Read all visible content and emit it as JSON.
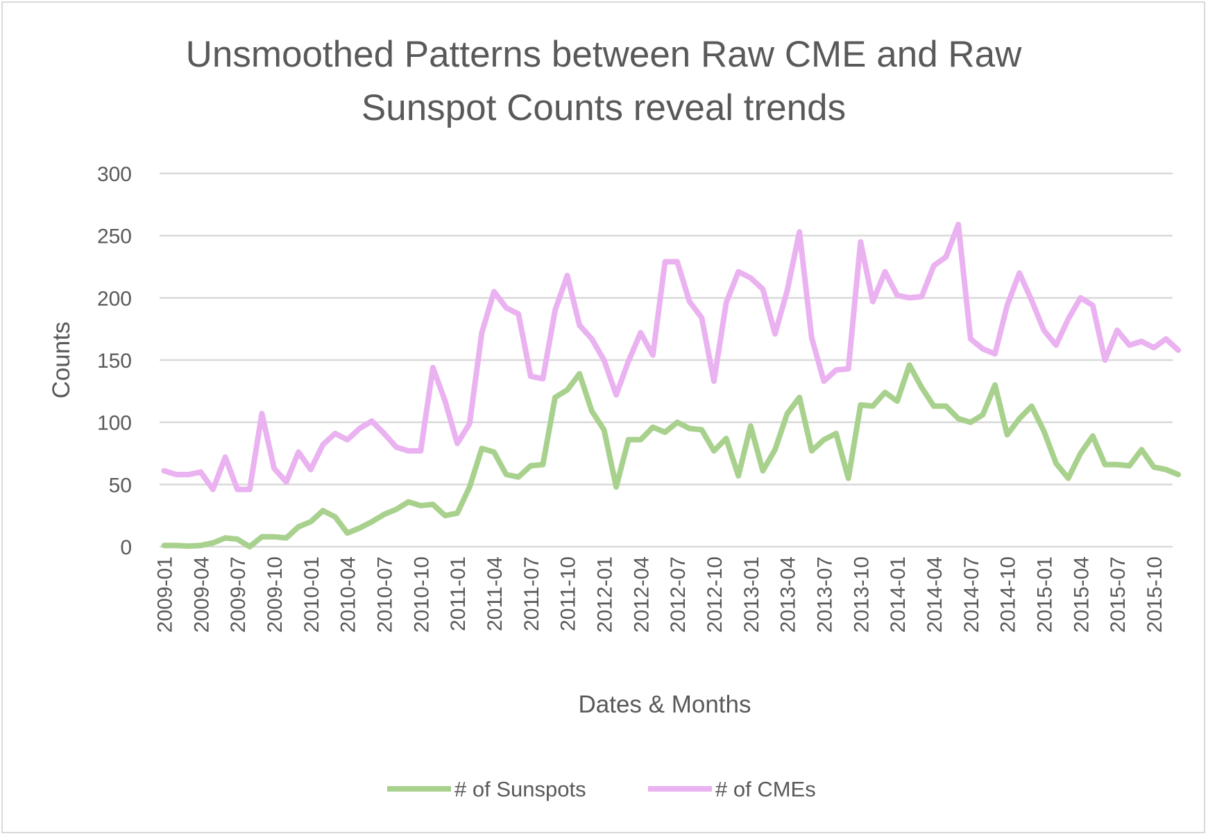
{
  "chart_data": {
    "type": "line",
    "title": [
      "Unsmoothed Patterns between Raw CME and Raw",
      "Sunspot Counts reveal trends"
    ],
    "xlabel": "Dates & Months",
    "ylabel": "Counts",
    "ylim": [
      0,
      300
    ],
    "yticks": [
      0,
      50,
      100,
      150,
      200,
      250,
      300
    ],
    "grid": true,
    "legend_position": "bottom",
    "x_start": "2009-01",
    "x_end": "2015-12",
    "xtick_labels": [
      "2009-01",
      "2009-04",
      "2009-07",
      "2009-10",
      "2010-01",
      "2010-04",
      "2010-07",
      "2010-10",
      "2011-01",
      "2011-04",
      "2011-07",
      "2011-10",
      "2012-01",
      "2012-04",
      "2012-07",
      "2012-10",
      "2013-01",
      "2013-04",
      "2013-07",
      "2013-10",
      "2014-01",
      "2014-04",
      "2014-07",
      "2014-10",
      "2015-01",
      "2015-04",
      "2015-07",
      "2015-10"
    ],
    "series": [
      {
        "name": "# of Sunspots",
        "color": "#a9d18e",
        "values": [
          1,
          1,
          0.5,
          1,
          3,
          7,
          6,
          0,
          8,
          8,
          7,
          16,
          20,
          29,
          24,
          11,
          15,
          20,
          26,
          30,
          36,
          33,
          34,
          25,
          27,
          48,
          79,
          76,
          58,
          56,
          65,
          66,
          120,
          126,
          139,
          109,
          94,
          48,
          86,
          86,
          96,
          92,
          100,
          95,
          94,
          77,
          87,
          57,
          97,
          61,
          78,
          107,
          120,
          77,
          86,
          91,
          55,
          114,
          113,
          124,
          117,
          146,
          128,
          113,
          113,
          103,
          100,
          106,
          130,
          90,
          103,
          113,
          93,
          67,
          55,
          75,
          89,
          66,
          66,
          65,
          78,
          64,
          62,
          58
        ]
      },
      {
        "name": "# of CMEs",
        "color": "#eab2f0",
        "values": [
          61,
          58,
          58,
          60,
          46,
          72,
          46,
          46,
          107,
          63,
          52,
          76,
          62,
          82,
          91,
          86,
          95,
          101,
          91,
          80,
          77,
          77,
          144,
          117,
          83,
          99,
          172,
          205,
          192,
          187,
          137,
          135,
          190,
          218,
          178,
          167,
          150,
          122,
          149,
          172,
          154,
          229,
          229,
          197,
          184,
          133,
          196,
          221,
          216,
          207,
          171,
          206,
          253,
          168,
          133,
          142,
          143,
          245,
          197,
          221,
          202,
          200,
          201,
          226,
          233,
          259,
          167,
          159,
          155,
          194,
          220,
          198,
          174,
          162,
          183,
          200,
          194,
          150,
          174,
          162,
          165,
          160,
          167,
          158
        ]
      }
    ]
  }
}
